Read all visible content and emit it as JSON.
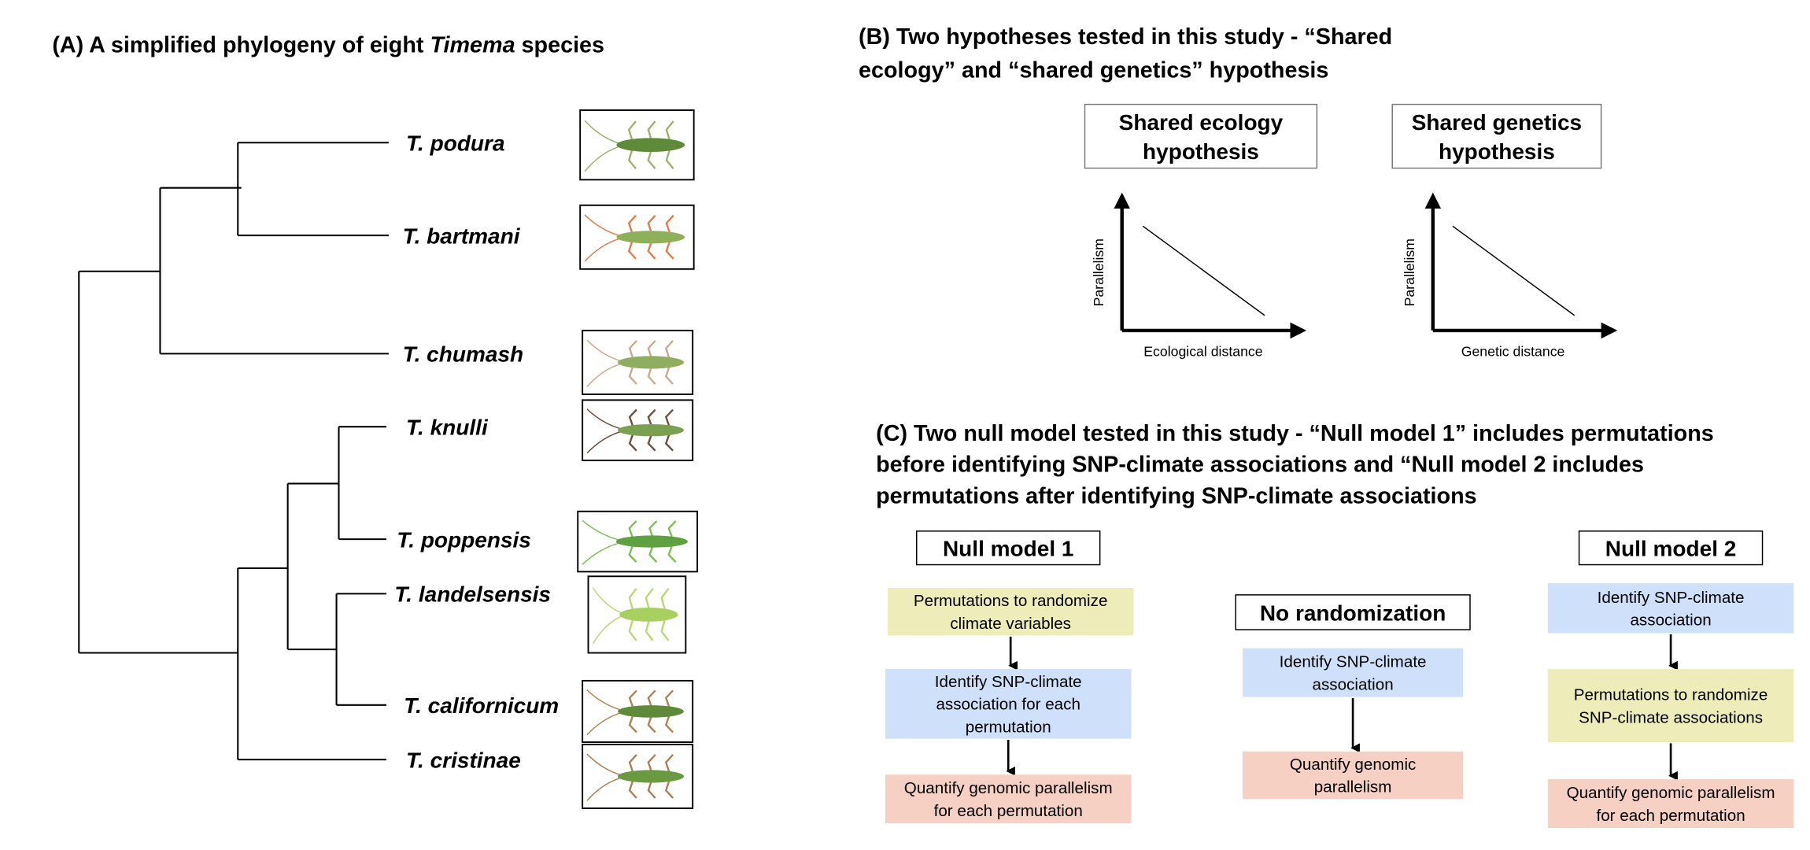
{
  "panel_a": {
    "title_prefix": "(A) A simplified phylogeny of eight ",
    "title_italic": "Timema",
    "title_suffix": " species",
    "species": [
      {
        "name": "T. podura",
        "body_color": "#5f8a3a",
        "leg_color": "#9bb26a"
      },
      {
        "name": "T. bartmani",
        "body_color": "#8fb05a",
        "leg_color": "#e07a4a"
      },
      {
        "name": "T. chumash",
        "body_color": "#8fae60",
        "leg_color": "#c9a98a"
      },
      {
        "name": "T. knulli",
        "body_color": "#7aa050",
        "leg_color": "#6b5040"
      },
      {
        "name": "T. poppensis",
        "body_color": "#5fa040",
        "leg_color": "#7cbf50"
      },
      {
        "name": "T. landelsensis",
        "body_color": "#a8d060",
        "leg_color": "#b8d870"
      },
      {
        "name": "T. californicum",
        "body_color": "#5f8a3a",
        "leg_color": "#b08050"
      },
      {
        "name": "T. cristinae",
        "body_color": "#6a9a40",
        "leg_color": "#b07a50"
      }
    ]
  },
  "panel_b": {
    "title_lines": [
      "(B) Two hypotheses tested in this study - “Shared",
      "ecology” and “shared genetics” hypothesis"
    ],
    "hypotheses": [
      {
        "box_lines": [
          "Shared ecology",
          "hypothesis"
        ],
        "ylabel": "Parallelism",
        "xlabel": "Ecological distance"
      },
      {
        "box_lines": [
          "Shared genetics",
          "hypothesis"
        ],
        "ylabel": "Parallelism",
        "xlabel": "Genetic distance"
      }
    ]
  },
  "panel_c": {
    "title_lines": [
      "(C) Two null model tested in this study - “Null model 1” includes permutations",
      "before identifying SNP-climate associations and “Null model 2 includes",
      "permutations after identifying SNP-climate associations"
    ],
    "colors": {
      "yellow": "#eeecb9",
      "blue": "#cfe0fa",
      "pink": "#f6d1c3"
    },
    "null_model_1": {
      "header": "Null model 1",
      "steps": [
        {
          "lines": [
            "Permutations to randomize",
            "climate variables"
          ],
          "color": "yellow"
        },
        {
          "lines": [
            "Identify SNP-climate",
            "association for each",
            "permutation"
          ],
          "color": "blue"
        },
        {
          "lines": [
            "Quantify genomic parallelism",
            "for each permutation"
          ],
          "color": "pink"
        }
      ]
    },
    "no_randomization": {
      "header": "No randomization",
      "steps": [
        {
          "lines": [
            "Identify SNP-climate",
            "association"
          ],
          "color": "blue"
        },
        {
          "lines": [
            "Quantify genomic",
            "parallelism"
          ],
          "color": "pink"
        }
      ]
    },
    "null_model_2": {
      "header": "Null model 2",
      "steps": [
        {
          "lines": [
            "Identify SNP-climate",
            "association"
          ],
          "color": "blue"
        },
        {
          "lines": [
            "Permutations to randomize",
            "SNP-climate associations"
          ],
          "color": "yellow"
        },
        {
          "lines": [
            "Quantify genomic parallelism",
            "for each permutation"
          ],
          "color": "pink"
        }
      ]
    }
  }
}
